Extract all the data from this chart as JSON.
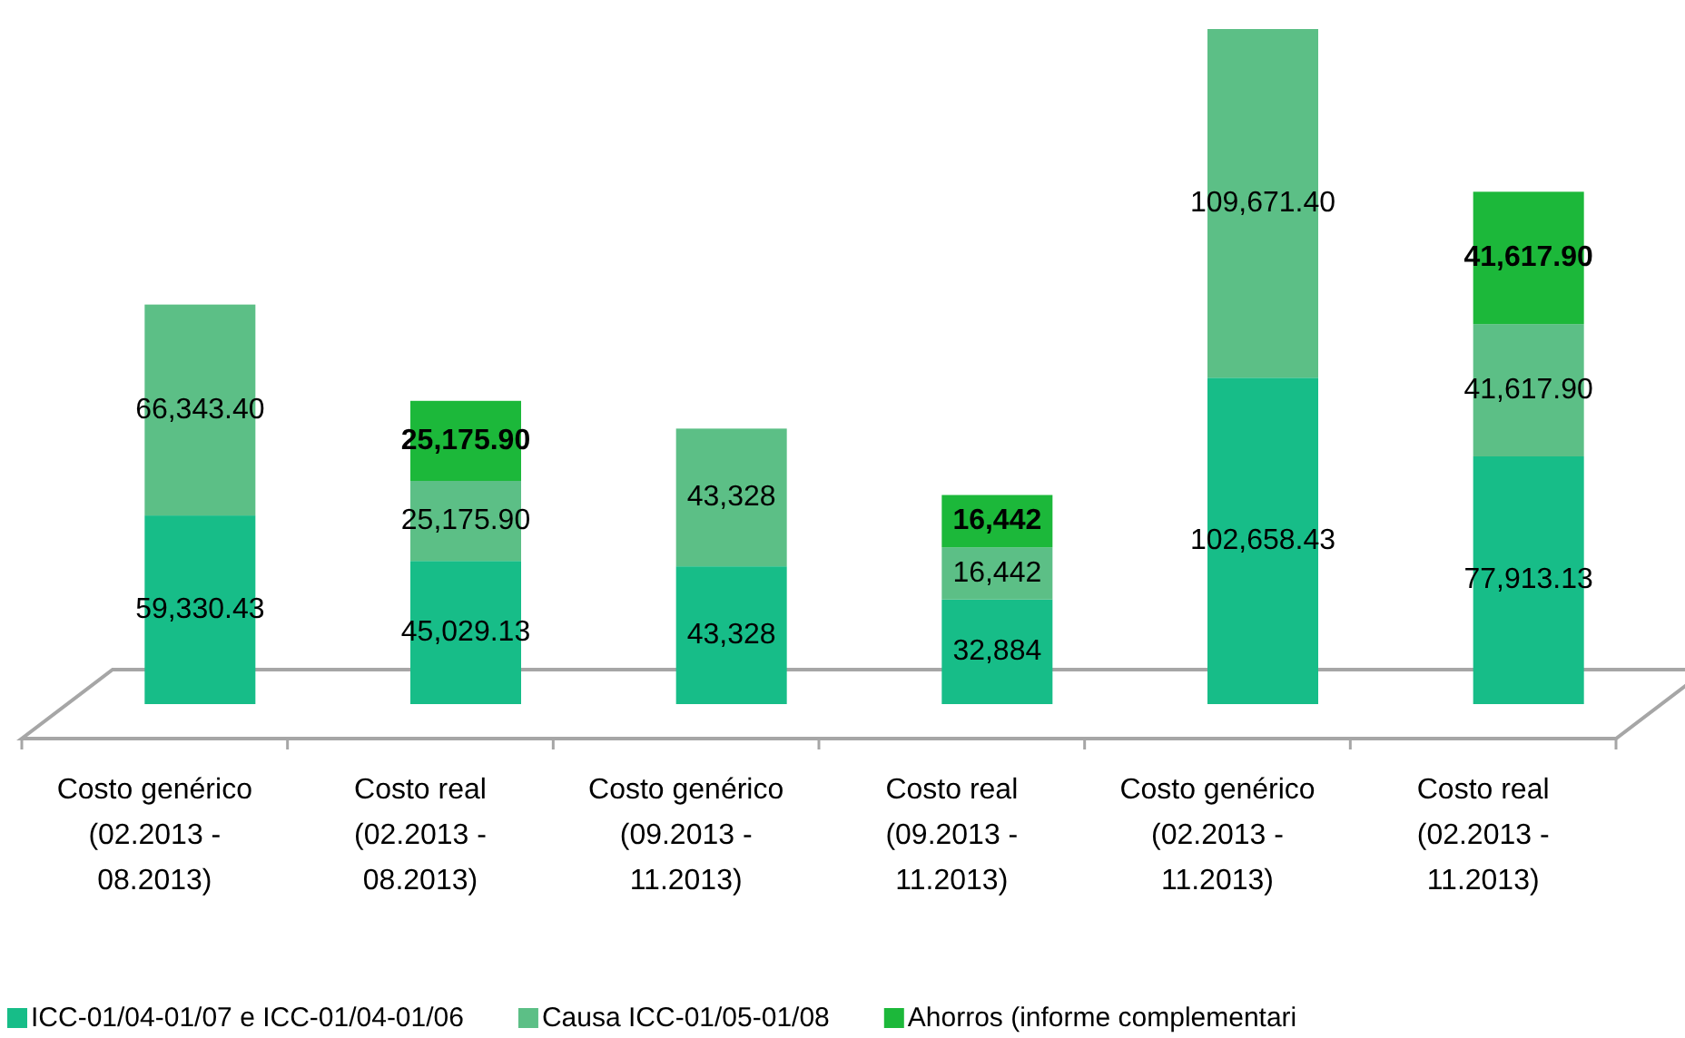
{
  "chart_data": {
    "type": "bar",
    "stacked": true,
    "legend": "bottom",
    "categories": [
      "Costo genérico (02.2013 - 08.2013)",
      "Costo real (02.2013 - 08.2013)",
      "Costo genérico (09.2013 - 11.2013)",
      "Costo real (09.2013 - 11.2013)",
      "Costo genérico (02.2013 - 11.2013)",
      "Costo real (02.2013 - 11.2013)"
    ],
    "series": [
      {
        "name": "ICC-01/04-01/07 e ICC-01/04-01/06",
        "color": "#17bd88",
        "values": [
          59330.43,
          45029.13,
          43328,
          32884,
          102658.43,
          77913.13
        ],
        "value_labels": [
          "59,330.43",
          "45,029.13",
          "43,328",
          "32,884",
          "102,658.43",
          "77,913.13"
        ]
      },
      {
        "name": "Causa ICC-01/05-01/08",
        "color": "#5cbf86",
        "values": [
          66343.4,
          25175.9,
          43328,
          16442,
          109671.4,
          41617.9
        ],
        "value_labels": [
          "66,343.40",
          "25,175.90",
          "43,328",
          "16,442",
          "109,671.40",
          "41,617.90"
        ]
      },
      {
        "name": "Ahorros (informe complementari",
        "color": "#1cb83a",
        "values": [
          null,
          25175.9,
          null,
          16442,
          null,
          41617.9
        ],
        "value_labels": [
          null,
          "25,175.90",
          null,
          "16,442",
          null,
          "41,617.90"
        ]
      }
    ]
  }
}
